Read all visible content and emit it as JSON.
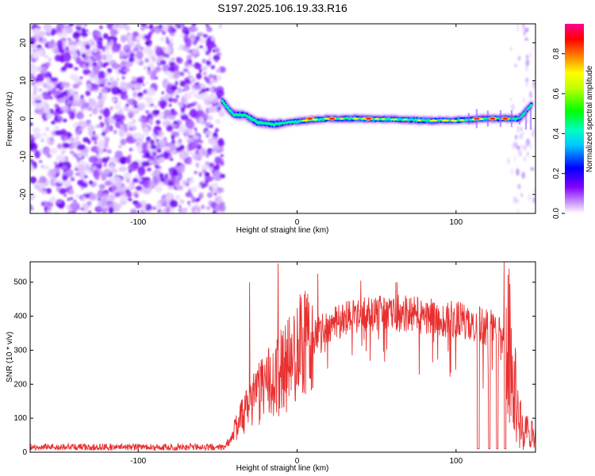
{
  "title": "S197.2025.106.19.33.R16",
  "chart_data": [
    {
      "type": "heatmap",
      "xlabel": "Height of straight line (km)",
      "ylabel": "Frequency (Hz)",
      "xlim": [
        -168,
        150
      ],
      "ylim": [
        -25,
        25
      ],
      "xticks": [
        -100,
        0,
        100
      ],
      "yticks": [
        -20,
        -10,
        0,
        10,
        20
      ],
      "colorbar": {
        "label": "Normalized spectral amplitude",
        "range": [
          0.0,
          0.95
        ],
        "ticks": [
          0.0,
          0.2,
          0.4,
          0.6,
          0.8
        ],
        "colors": [
          "#ffffff",
          "#a000ff",
          "#0000ff",
          "#00ffff",
          "#00ff00",
          "#ffff00",
          "#ff8000",
          "#ff0000",
          "#ff00a0"
        ]
      },
      "noise_region_x": [
        -168,
        -47
      ],
      "signal_track": [
        {
          "x": -47,
          "y": 4.5
        },
        {
          "x": -40,
          "y": 1.0
        },
        {
          "x": -33,
          "y": 1.0
        },
        {
          "x": -25,
          "y": -1.0
        },
        {
          "x": -15,
          "y": -1.5
        },
        {
          "x": -5,
          "y": -1.0
        },
        {
          "x": 10,
          "y": -0.3
        },
        {
          "x": 20,
          "y": 0.0
        },
        {
          "x": 40,
          "y": 0.0
        },
        {
          "x": 60,
          "y": -0.2
        },
        {
          "x": 80,
          "y": -0.5
        },
        {
          "x": 100,
          "y": -0.5
        },
        {
          "x": 120,
          "y": 0.0
        },
        {
          "x": 140,
          "y": 0.0
        },
        {
          "x": 148,
          "y": 4.0
        }
      ],
      "hot_spots": [
        {
          "x": 8,
          "y": 0.0,
          "v": 0.9
        },
        {
          "x": 22,
          "y": 0.0,
          "v": 0.9
        },
        {
          "x": 45,
          "y": 0.0,
          "v": 0.85
        },
        {
          "x": 113,
          "y": 0.0,
          "v": 0.9
        },
        {
          "x": 123,
          "y": 0.0,
          "v": 0.9
        },
        {
          "x": 131,
          "y": 0.0,
          "v": 0.9
        }
      ]
    },
    {
      "type": "line",
      "xlabel": "Height of straight line (km)",
      "ylabel": "SNR (10 * v/v)",
      "xlim": [
        -168,
        150
      ],
      "ylim": [
        0,
        560
      ],
      "xticks": [
        -100,
        0,
        100
      ],
      "yticks": [
        0,
        100,
        200,
        300,
        400,
        500
      ],
      "color": "#e83030",
      "envelope": [
        {
          "x": -168,
          "y": 15
        },
        {
          "x": -45,
          "y": 15
        },
        {
          "x": -35,
          "y": 100
        },
        {
          "x": -25,
          "y": 170
        },
        {
          "x": -15,
          "y": 210
        },
        {
          "x": -5,
          "y": 260
        },
        {
          "x": 5,
          "y": 320
        },
        {
          "x": 20,
          "y": 370
        },
        {
          "x": 40,
          "y": 410
        },
        {
          "x": 60,
          "y": 410
        },
        {
          "x": 80,
          "y": 400
        },
        {
          "x": 100,
          "y": 390
        },
        {
          "x": 112,
          "y": 380
        },
        {
          "x": 125,
          "y": 360
        },
        {
          "x": 133,
          "y": 300
        },
        {
          "x": 138,
          "y": 150
        },
        {
          "x": 142,
          "y": 60
        },
        {
          "x": 150,
          "y": 50
        }
      ],
      "spikes": [
        {
          "x": -30,
          "y": 500
        },
        {
          "x": -12,
          "y": 555
        },
        {
          "x": 13,
          "y": 525
        },
        {
          "x": 40,
          "y": 505
        },
        {
          "x": 62,
          "y": 500
        },
        {
          "x": 63,
          "y": 500
        }
      ],
      "dropouts": [
        {
          "x": 114,
          "y": 10
        },
        {
          "x": 121,
          "y": 10
        },
        {
          "x": 126,
          "y": 10
        },
        {
          "x": 131,
          "y": 10
        }
      ]
    }
  ]
}
